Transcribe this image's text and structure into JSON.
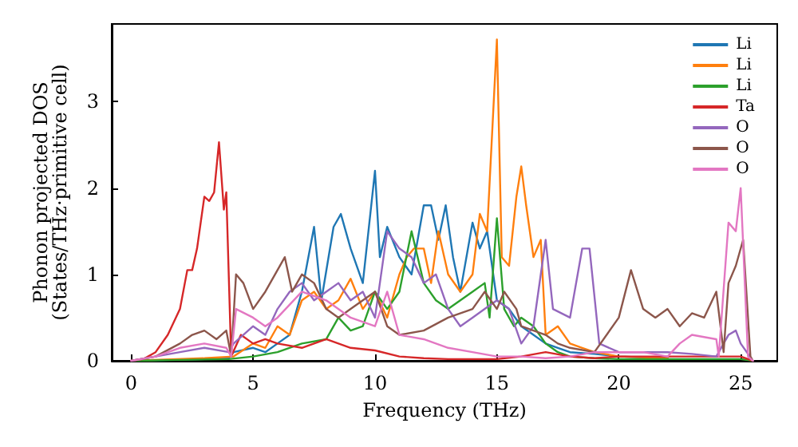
{
  "chart_data": {
    "type": "line",
    "xlabel": "Frequency (THz)",
    "ylabel": "Phonon projected DOS\n(States/THz·primitive cell)",
    "xlim": [
      -0.8,
      26.5
    ],
    "ylim": [
      0,
      3.9
    ],
    "xticks": [
      0,
      5,
      10,
      15,
      20,
      25
    ],
    "yticks": [
      0,
      1,
      2,
      3
    ],
    "grid": false,
    "legend": "top right",
    "marker": "none",
    "line_style": "solid",
    "series": [
      {
        "name": "Li",
        "color": "#1f77b4",
        "x": [
          0,
          3,
          4,
          4.2,
          5,
          5.5,
          6,
          6.5,
          7,
          7.5,
          7.8,
          8.3,
          8.6,
          9,
          9.5,
          10,
          10.2,
          10.5,
          11,
          11.5,
          12,
          12.3,
          12.6,
          12.9,
          13.2,
          13.5,
          14,
          14.3,
          14.6,
          15,
          15.5,
          16,
          16.5,
          17,
          17.5,
          18,
          19,
          20,
          22
        ],
        "values": [
          0,
          0.02,
          0.03,
          0.1,
          0.15,
          0.1,
          0.2,
          0.3,
          0.8,
          1.55,
          0.7,
          1.55,
          1.7,
          1.3,
          0.9,
          2.2,
          1.2,
          1.55,
          1.2,
          1,
          1.8,
          1.8,
          1.4,
          1.8,
          1.2,
          0.8,
          1.6,
          1.3,
          1.5,
          0.7,
          0.6,
          0.4,
          0.3,
          0.2,
          0.15,
          0.1,
          0.08,
          0.05,
          0.03
        ]
      },
      {
        "name": "Li",
        "color": "#ff7f0e",
        "x": [
          0,
          3,
          4.2,
          5,
          5.5,
          6,
          6.5,
          7,
          7.5,
          8,
          8.5,
          9,
          9.5,
          10,
          10.5,
          11,
          11.3,
          11.6,
          12,
          12.3,
          12.6,
          13,
          13.5,
          14,
          14.3,
          14.6,
          15,
          15.2,
          15.5,
          15.8,
          16,
          16.2,
          16.5,
          16.8,
          17,
          17.5,
          18,
          18.5,
          19,
          20,
          22
        ],
        "values": [
          0,
          0.03,
          0.05,
          0.2,
          0.15,
          0.4,
          0.3,
          0.7,
          0.8,
          0.6,
          0.7,
          0.95,
          0.6,
          0.8,
          0.5,
          1,
          1.2,
          1.3,
          1.3,
          0.9,
          1.5,
          1,
          0.8,
          1,
          1.7,
          1.5,
          3.72,
          1.2,
          1.1,
          1.9,
          2.25,
          1.8,
          1.2,
          1.4,
          0.3,
          0.4,
          0.2,
          0.15,
          0.1,
          0.05,
          0.03
        ]
      },
      {
        "name": "Li",
        "color": "#2ca02c",
        "x": [
          0,
          4,
          5,
          6,
          7,
          8,
          8.5,
          9,
          9.5,
          10,
          10.5,
          11,
          11.5,
          12,
          12.5,
          13,
          14,
          14.5,
          14.7,
          15,
          15.3,
          15.7,
          16,
          16.5,
          17,
          17.5,
          18,
          19,
          20,
          25,
          25.5
        ],
        "values": [
          0,
          0.02,
          0.05,
          0.1,
          0.2,
          0.25,
          0.5,
          0.35,
          0.4,
          0.8,
          0.6,
          0.8,
          1.5,
          0.9,
          0.7,
          0.6,
          0.8,
          0.9,
          0.5,
          1.65,
          0.6,
          0.4,
          0.5,
          0.4,
          0.2,
          0.1,
          0.05,
          0.03,
          0.02,
          0.02,
          0
        ]
      },
      {
        "name": "Ta",
        "color": "#d62728",
        "x": [
          0,
          0.5,
          1,
          1.5,
          2,
          2.3,
          2.5,
          2.7,
          3,
          3.2,
          3.4,
          3.6,
          3.8,
          3.9,
          4.1,
          4.5,
          5,
          5.5,
          6,
          7,
          8,
          9,
          10,
          11,
          12,
          13,
          15,
          16,
          17,
          18,
          19,
          20,
          22,
          23,
          24,
          25,
          25.5
        ],
        "values": [
          0,
          0.02,
          0.1,
          0.3,
          0.6,
          1.05,
          1.05,
          1.3,
          1.9,
          1.85,
          1.95,
          2.53,
          1.75,
          1.95,
          0.05,
          0.3,
          0.2,
          0.25,
          0.2,
          0.15,
          0.25,
          0.15,
          0.12,
          0.05,
          0.03,
          0.02,
          0.02,
          0.05,
          0.1,
          0.05,
          0.03,
          0.05,
          0.05,
          0.05,
          0.05,
          0.05,
          0
        ]
      },
      {
        "name": "O",
        "color": "#9467bd",
        "x": [
          0,
          1,
          2,
          3,
          4,
          4.2,
          5,
          5.5,
          6,
          6.5,
          7,
          7.5,
          8,
          8.5,
          9,
          9.5,
          10,
          10.5,
          11,
          11.5,
          12,
          12.5,
          13,
          13.5,
          14,
          14.5,
          15,
          15.5,
          16,
          16.5,
          17,
          17.3,
          18,
          18.5,
          18.8,
          19.2,
          20,
          21,
          22,
          23,
          24,
          24.5,
          24.8,
          25,
          25.5
        ],
        "values": [
          0,
          0.05,
          0.1,
          0.15,
          0.1,
          0.2,
          0.4,
          0.3,
          0.6,
          0.8,
          0.9,
          0.7,
          0.8,
          0.9,
          0.7,
          0.8,
          0.5,
          1.5,
          1.3,
          1.2,
          0.9,
          1,
          0.6,
          0.4,
          0.5,
          0.6,
          0.7,
          0.6,
          0.2,
          0.4,
          1.4,
          0.6,
          0.5,
          1.3,
          1.3,
          0.2,
          0.1,
          0.1,
          0.1,
          0.08,
          0.05,
          0.3,
          0.35,
          0.2,
          0
        ]
      },
      {
        "name": "O",
        "color": "#8c564b",
        "x": [
          0,
          1,
          2,
          2.5,
          3,
          3.5,
          3.9,
          4.1,
          4.3,
          4.6,
          5,
          5.5,
          6,
          6.3,
          6.6,
          7,
          7.5,
          8,
          8.5,
          9,
          9.5,
          10,
          10.5,
          11,
          12,
          13,
          14,
          14.5,
          15,
          15.3,
          15.8,
          16,
          17,
          17.5,
          18,
          19,
          20,
          20.5,
          21,
          21.5,
          22,
          22.5,
          23,
          23.5,
          24,
          24.3,
          24.5,
          24.8,
          25.1,
          25.4,
          25.5
        ],
        "values": [
          0,
          0.05,
          0.2,
          0.3,
          0.35,
          0.25,
          0.35,
          0.05,
          1,
          0.9,
          0.6,
          0.8,
          1.05,
          1.2,
          0.8,
          1,
          0.9,
          0.6,
          0.5,
          0.6,
          0.7,
          0.8,
          0.4,
          0.3,
          0.35,
          0.5,
          0.6,
          0.8,
          0.6,
          0.8,
          0.6,
          0.4,
          0.3,
          0.2,
          0.15,
          0.1,
          0.5,
          1.05,
          0.6,
          0.5,
          0.6,
          0.4,
          0.55,
          0.5,
          0.8,
          0.1,
          0.9,
          1.1,
          1.4,
          0.05,
          0
        ]
      },
      {
        "name": "O",
        "color": "#e377c2",
        "x": [
          0,
          1,
          2,
          3,
          3.9,
          4.1,
          4.3,
          5,
          5.5,
          6,
          7,
          8,
          9,
          10,
          10.5,
          11,
          12,
          13,
          14,
          15,
          16,
          17,
          18,
          19,
          20,
          21,
          22,
          22.5,
          23,
          24,
          24.1,
          24.5,
          24.8,
          25,
          25.3,
          25.5
        ],
        "values": [
          0,
          0.05,
          0.15,
          0.2,
          0.15,
          0.05,
          0.6,
          0.5,
          0.4,
          0.5,
          0.8,
          0.7,
          0.5,
          0.4,
          0.8,
          0.3,
          0.25,
          0.15,
          0.1,
          0.05,
          0.05,
          0.03,
          0.05,
          0.1,
          0.1,
          0.1,
          0.05,
          0.2,
          0.3,
          0.25,
          0.05,
          1.6,
          1.5,
          2,
          0.05,
          0
        ]
      }
    ]
  }
}
